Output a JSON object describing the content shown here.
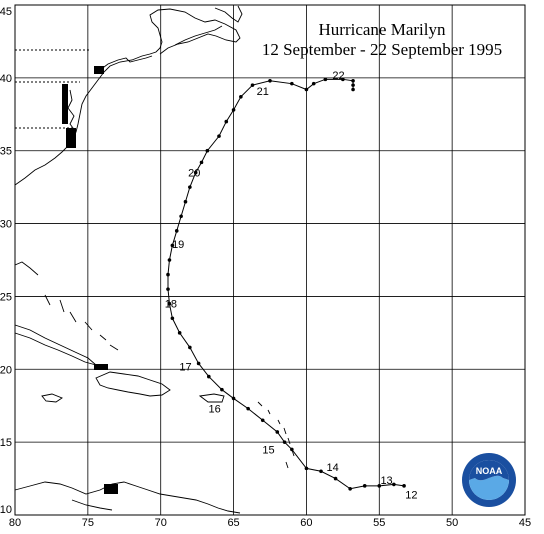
{
  "title": {
    "line1": "Hurricane Marilyn",
    "line2": "12 September - 22 September 1995"
  },
  "axes": {
    "lon_labels": [
      "80",
      "75",
      "70",
      "65",
      "60",
      "55",
      "50",
      "45"
    ],
    "lat_labels": [
      "10",
      "15",
      "20",
      "25",
      "30",
      "35",
      "40",
      "45"
    ],
    "lon_range": [
      80,
      45
    ],
    "lat_range": [
      10,
      45
    ],
    "grid": true
  },
  "track": {
    "points": [
      [
        53.3,
        12.0
      ],
      [
        54.0,
        12.1
      ],
      [
        55.0,
        12.0
      ],
      [
        56.0,
        12.0
      ],
      [
        57.0,
        11.8
      ],
      [
        58.0,
        12.5
      ],
      [
        59.0,
        13.0
      ],
      [
        60.0,
        13.2
      ],
      [
        61.0,
        14.5
      ],
      [
        61.5,
        15.0
      ],
      [
        62.0,
        15.7
      ],
      [
        63.0,
        16.5
      ],
      [
        64.0,
        17.3
      ],
      [
        65.0,
        18.0
      ],
      [
        65.8,
        18.6
      ],
      [
        66.7,
        19.5
      ],
      [
        67.4,
        20.4
      ],
      [
        68.0,
        21.5
      ],
      [
        68.7,
        22.5
      ],
      [
        69.2,
        23.5
      ],
      [
        69.4,
        24.5
      ],
      [
        69.5,
        25.5
      ],
      [
        69.5,
        26.5
      ],
      [
        69.4,
        27.5
      ],
      [
        69.2,
        28.5
      ],
      [
        68.9,
        29.5
      ],
      [
        68.6,
        30.5
      ],
      [
        68.3,
        31.5
      ],
      [
        68.0,
        32.5
      ],
      [
        67.6,
        33.5
      ],
      [
        67.2,
        34.2
      ],
      [
        66.8,
        35.0
      ],
      [
        66.0,
        36.0
      ],
      [
        65.5,
        37.0
      ],
      [
        65.0,
        37.8
      ],
      [
        64.5,
        38.7
      ],
      [
        63.7,
        39.5
      ],
      [
        62.5,
        39.8
      ],
      [
        61.0,
        39.6
      ],
      [
        60.0,
        39.2
      ],
      [
        59.5,
        39.6
      ],
      [
        58.7,
        39.9
      ],
      [
        57.5,
        39.9
      ],
      [
        56.8,
        39.8
      ],
      [
        56.8,
        39.5
      ],
      [
        56.8,
        39.2
      ]
    ],
    "day_labels": [
      {
        "text": "12",
        "lon": 52.8,
        "lat": 11.4
      },
      {
        "text": "13",
        "lon": 54.5,
        "lat": 12.4
      },
      {
        "text": "14",
        "lon": 58.2,
        "lat": 13.3
      },
      {
        "text": "15",
        "lon": 62.6,
        "lat": 14.5
      },
      {
        "text": "16",
        "lon": 66.3,
        "lat": 17.3
      },
      {
        "text": "17",
        "lon": 68.3,
        "lat": 20.2
      },
      {
        "text": "18",
        "lon": 69.3,
        "lat": 24.5
      },
      {
        "text": "19",
        "lon": 68.8,
        "lat": 28.6
      },
      {
        "text": "20",
        "lon": 67.7,
        "lat": 33.5
      },
      {
        "text": "21",
        "lon": 63.0,
        "lat": 39.1
      },
      {
        "text": "22",
        "lon": 57.8,
        "lat": 40.2
      }
    ]
  },
  "logo": {
    "text": "NOAA",
    "colors": {
      "outer": "#1a4fa0",
      "inner": "#5aa9e6",
      "ring": "#ffffff"
    }
  },
  "colors": {
    "land": "#000000",
    "grid": "#000000",
    "track": "#000000"
  }
}
